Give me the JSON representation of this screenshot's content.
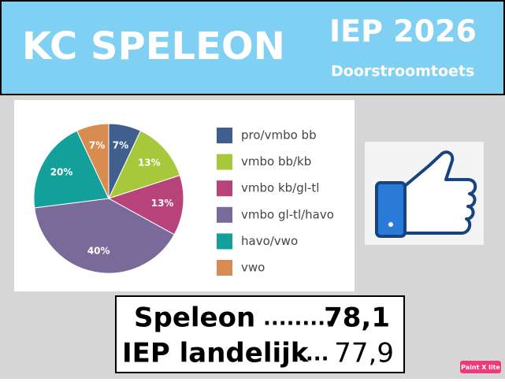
{
  "header": {
    "title": "KC SPELEON",
    "subtitle": "IEP 2026",
    "tagline": "Doorstroomtoets"
  },
  "chart_data": {
    "type": "pie",
    "categories": [
      "pro/vmbo bb",
      "vmbo bb/kb",
      "vmbo kb/gl-tl",
      "vmbo gl-tl/havo",
      "havo/vwo",
      "vwo"
    ],
    "values": [
      7,
      13,
      13,
      40,
      20,
      7
    ],
    "value_labels": [
      "7%",
      "13%",
      "13%",
      "40%",
      "20%",
      "7%"
    ],
    "colors": [
      "#3f5f8f",
      "#a8c83c",
      "#b8427a",
      "#7a6a9a",
      "#13a09a",
      "#d88c50"
    ],
    "legend": "right"
  },
  "scores": [
    {
      "label": "Speleon",
      "dots": ".........",
      "value": "78,1"
    },
    {
      "label": "IEP landelijk",
      "dots": "....",
      "value": "77,9"
    }
  ],
  "watermark": "Paint X lite"
}
